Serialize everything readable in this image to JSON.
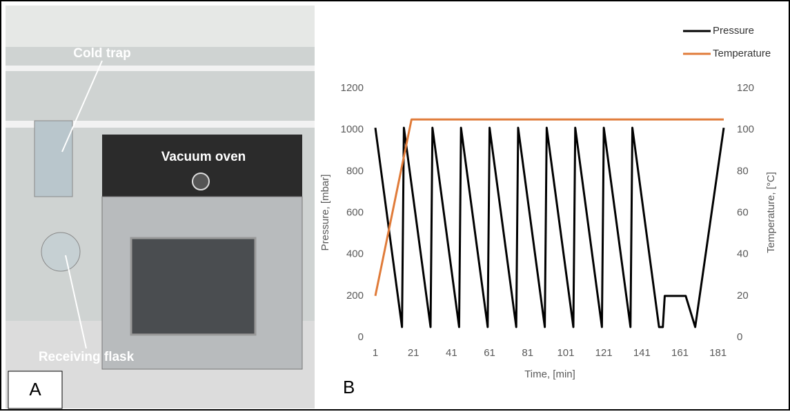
{
  "photo": {
    "label": "A",
    "annotations": [
      "Cold trap",
      "Vacuum oven",
      "Receiving flask"
    ]
  },
  "chart_data": {
    "type": "line",
    "panel_label": "B",
    "xlabel": "Time, [min]",
    "ylabel": "Pressure, [mbar]",
    "y2label": "Temperature, [°C]",
    "xlim": [
      1,
      184
    ],
    "xticks": [
      1,
      21,
      41,
      61,
      81,
      101,
      121,
      141,
      161,
      181
    ],
    "ylim": [
      0,
      1200
    ],
    "yticks": [
      0,
      200,
      400,
      600,
      800,
      1000,
      1200
    ],
    "y2lim": [
      0,
      120
    ],
    "y2ticks": [
      0,
      20,
      40,
      60,
      80,
      100,
      120
    ],
    "legend": "top-right",
    "grid": false,
    "series": [
      {
        "name": "Pressure",
        "color": "#000000",
        "x": [
          1,
          15,
          16,
          30,
          31,
          45,
          46,
          60,
          61,
          75,
          76,
          90,
          91,
          105,
          106,
          120,
          121,
          135,
          136,
          150,
          152,
          153,
          164,
          169,
          184
        ],
        "values": [
          1010,
          50,
          1010,
          50,
          1010,
          50,
          1010,
          50,
          1010,
          50,
          1010,
          50,
          1010,
          50,
          1010,
          50,
          1010,
          50,
          1010,
          50,
          50,
          200,
          200,
          50,
          1010
        ]
      },
      {
        "name": "Temperature",
        "color": "#e07b39",
        "axis": "y2",
        "x": [
          1,
          20,
          184
        ],
        "values": [
          20,
          105,
          105
        ]
      }
    ]
  }
}
